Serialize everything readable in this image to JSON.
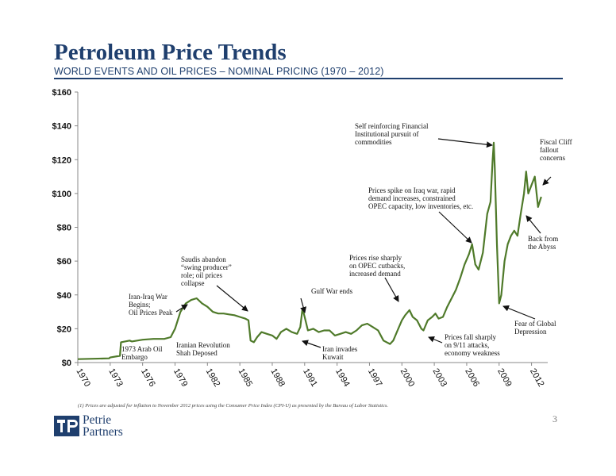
{
  "header": {
    "title": "Petroleum Price Trends",
    "subtitle": "WORLD EVENTS AND OIL PRICES – NOMINAL PRICING (1970 – 2012)"
  },
  "footnote": "(1)    Prices are adjusted for inflation to November 2012 prices using the Consumer Price Index (CPI-U) as presented by the Bureau of Labor Statistics.",
  "page_number": "3",
  "logo": {
    "line1": "Petrie",
    "line2": "Partners",
    "color": "#1f3f6e"
  },
  "colors": {
    "accent": "#1f3f6e",
    "line": "#4f7a2a",
    "arrow": "#111111"
  },
  "chart_data": {
    "type": "line",
    "title": "Petroleum Price Trends",
    "subtitle": "WORLD EVENTS AND OIL PRICES – NOMINAL PRICING (1970 – 2012)",
    "xlabel": "",
    "ylabel": "",
    "xlim": [
      1970,
      2013.5
    ],
    "ylim": [
      0,
      160
    ],
    "grid": false,
    "legend": "none",
    "y_ticks": [
      0,
      20,
      40,
      60,
      80,
      100,
      120,
      140,
      160
    ],
    "y_tick_labels": [
      "$0",
      "$20",
      "$40",
      "$60",
      "$80",
      "$100",
      "$120",
      "$140",
      "$160"
    ],
    "x_ticks": [
      1970,
      1973,
      1976,
      1979,
      1982,
      1985,
      1988,
      1991,
      1994,
      1997,
      2000,
      2003,
      2006,
      2009,
      2012
    ],
    "x_tick_labels": [
      "1970",
      "1973",
      "1976",
      "1979",
      "1982",
      "1985",
      "1988",
      "1991",
      "1994",
      "1997",
      "2000",
      "2003",
      "2006",
      "2009",
      "2012"
    ],
    "series": [
      {
        "x": [
          1970,
          1972.9,
          1973.0,
          1973.9,
          1974.0,
          1974.8,
          1975.0,
          1976.0,
          1977.0,
          1978.0,
          1978.6,
          1979.0,
          1979.5,
          1980.0,
          1980.5,
          1981.0,
          1981.5,
          1982.0,
          1982.5,
          1983.0,
          1983.5,
          1984.0,
          1984.5,
          1985.0,
          1985.5,
          1985.8,
          1986.0,
          1986.3,
          1986.6,
          1987.0,
          1987.5,
          1988.0,
          1988.4,
          1988.8,
          1989.3,
          1989.8,
          1990.3,
          1990.6,
          1990.8,
          1991.0,
          1991.3,
          1991.8,
          1992.3,
          1992.8,
          1993.3,
          1993.8,
          1994.3,
          1994.8,
          1995.3,
          1995.8,
          1996.3,
          1996.8,
          1997.3,
          1997.8,
          1998.3,
          1998.9,
          1999.2,
          1999.6,
          2000.0,
          2000.3,
          2000.7,
          2001.0,
          2001.4,
          2001.8,
          2002.0,
          2002.4,
          2002.8,
          2003.1,
          2003.4,
          2003.8,
          2004.2,
          2004.6,
          2005.0,
          2005.4,
          2005.8,
          2006.2,
          2006.5,
          2006.8,
          2007.1,
          2007.5,
          2007.9,
          2008.2,
          2008.4,
          2008.5,
          2008.6,
          2008.8,
          2009.0,
          2009.2,
          2009.5,
          2009.8,
          2010.1,
          2010.4,
          2010.7,
          2011.0,
          2011.3,
          2011.5,
          2011.7,
          2012.0,
          2012.3,
          2012.6,
          2012.9
        ],
        "y": [
          2,
          2.5,
          3,
          4,
          12,
          13,
          12.5,
          13.5,
          14,
          14,
          15,
          20,
          30,
          35,
          37,
          38,
          35,
          33,
          30,
          29,
          29,
          28.5,
          28,
          27,
          26,
          25,
          13,
          12,
          15,
          18,
          17,
          16,
          14,
          18,
          20,
          18,
          17,
          21,
          32,
          27,
          19,
          20,
          18,
          19,
          19,
          16,
          17,
          18,
          17,
          19,
          22,
          23,
          21,
          19,
          13,
          11,
          13,
          19,
          25,
          28,
          31,
          27,
          25,
          20,
          19,
          25,
          27,
          29,
          26,
          27,
          33,
          38,
          43,
          50,
          58,
          64,
          70,
          58,
          55,
          65,
          88,
          95,
          120,
          130,
          115,
          70,
          35,
          40,
          60,
          70,
          75,
          78,
          75,
          88,
          100,
          113,
          100,
          105,
          110,
          92,
          98
        ]
      }
    ],
    "annotations": [
      {
        "text": [
          "1973 Arab Oil",
          "Embargo"
        ]
      },
      {
        "text": [
          "Iran-Iraq War",
          "Begins;",
          "Oil Prices Peak"
        ]
      },
      {
        "text": [
          "Iranian Revolution",
          "Shah Deposed"
        ]
      },
      {
        "text": [
          "Saudis abandon",
          "“swing producer”",
          "role; oil prices",
          "collapse"
        ]
      },
      {
        "text": [
          "Gulf War ends"
        ]
      },
      {
        "text": [
          "Iran invades",
          "Kuwait"
        ]
      },
      {
        "text": [
          "Prices rise sharply",
          "on OPEC cutbacks,",
          "increased demand"
        ]
      },
      {
        "text": [
          "Prices fall sharply",
          "on 9/11 attacks,",
          "economy weakness"
        ]
      },
      {
        "text": [
          "Prices spike on Iraq war, rapid",
          "demand increases, constrained",
          "OPEC capacity, low inventories, etc."
        ]
      },
      {
        "text": [
          "Self reinforcing Financial",
          "Institutional pursuit of",
          "commodities"
        ]
      },
      {
        "text": [
          "Fear of Global",
          "Depression"
        ]
      },
      {
        "text": [
          "Back from",
          "the Abyss"
        ]
      },
      {
        "text": [
          "Fiscal Cliff",
          "fallout",
          "concerns"
        ]
      }
    ]
  }
}
